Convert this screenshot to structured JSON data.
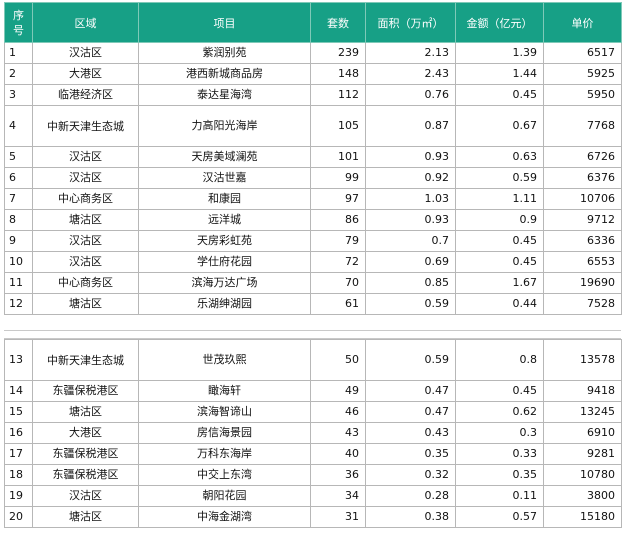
{
  "headers": {
    "seq": "序号",
    "district": "区域",
    "project": "项目",
    "count": "套数",
    "area": "面积（万㎡）",
    "amount": "金额（亿元）",
    "price": "单价"
  },
  "rows_top": [
    {
      "seq": "1",
      "district": "汉沽区",
      "project": "紫润别苑",
      "count": "239",
      "area": "2.13",
      "amount": "1.39",
      "price": "6517"
    },
    {
      "seq": "2",
      "district": "大港区",
      "project": "港西新城商品房",
      "count": "148",
      "area": "2.43",
      "amount": "1.44",
      "price": "5925"
    },
    {
      "seq": "3",
      "district": "临港经济区",
      "project": "泰达星海湾",
      "count": "112",
      "area": "0.76",
      "amount": "0.45",
      "price": "5950"
    },
    {
      "seq": "4",
      "district": "中新天津生态城",
      "project": "力高阳光海岸",
      "count": "105",
      "area": "0.87",
      "amount": "0.67",
      "price": "7768"
    },
    {
      "seq": "5",
      "district": "汉沽区",
      "project": "天房美域澜苑",
      "count": "101",
      "area": "0.93",
      "amount": "0.63",
      "price": "6726"
    },
    {
      "seq": "6",
      "district": "汉沽区",
      "project": "汉沽世嘉",
      "count": "99",
      "area": "0.92",
      "amount": "0.59",
      "price": "6376"
    },
    {
      "seq": "7",
      "district": "中心商务区",
      "project": "和康园",
      "count": "97",
      "area": "1.03",
      "amount": "1.11",
      "price": "10706"
    },
    {
      "seq": "8",
      "district": "塘沽区",
      "project": "远洋城",
      "count": "86",
      "area": "0.93",
      "amount": "0.9",
      "price": "9712"
    },
    {
      "seq": "9",
      "district": "汉沽区",
      "project": "天房彩虹苑",
      "count": "79",
      "area": "0.7",
      "amount": "0.45",
      "price": "6336"
    },
    {
      "seq": "10",
      "district": "汉沽区",
      "project": "学仕府花园",
      "count": "72",
      "area": "0.69",
      "amount": "0.45",
      "price": "6553"
    },
    {
      "seq": "11",
      "district": "中心商务区",
      "project": "滨海万达广场",
      "count": "70",
      "area": "0.85",
      "amount": "1.67",
      "price": "19690"
    },
    {
      "seq": "12",
      "district": "塘沽区",
      "project": "乐湖绅湖园",
      "count": "61",
      "area": "0.59",
      "amount": "0.44",
      "price": "7528"
    }
  ],
  "rows_bottom": [
    {
      "seq": "13",
      "district": "中新天津生态城",
      "project": "世茂玖熙",
      "count": "50",
      "area": "0.59",
      "amount": "0.8",
      "price": "13578"
    },
    {
      "seq": "14",
      "district": "东疆保税港区",
      "project": "瞰海轩",
      "count": "49",
      "area": "0.47",
      "amount": "0.45",
      "price": "9418"
    },
    {
      "seq": "15",
      "district": "塘沽区",
      "project": "滨海智谛山",
      "count": "46",
      "area": "0.47",
      "amount": "0.62",
      "price": "13245"
    },
    {
      "seq": "16",
      "district": "大港区",
      "project": "房信海景园",
      "count": "43",
      "area": "0.43",
      "amount": "0.3",
      "price": "6910"
    },
    {
      "seq": "17",
      "district": "东疆保税港区",
      "project": "万科东海岸",
      "count": "40",
      "area": "0.35",
      "amount": "0.33",
      "price": "9281"
    },
    {
      "seq": "18",
      "district": "东疆保税港区",
      "project": "中交上东湾",
      "count": "36",
      "area": "0.32",
      "amount": "0.35",
      "price": "10780"
    },
    {
      "seq": "19",
      "district": "汉沽区",
      "project": "朝阳花园",
      "count": "34",
      "area": "0.28",
      "amount": "0.11",
      "price": "3800"
    },
    {
      "seq": "20",
      "district": "塘沽区",
      "project": "中海金湖湾",
      "count": "31",
      "area": "0.38",
      "amount": "0.57",
      "price": "15180"
    }
  ]
}
